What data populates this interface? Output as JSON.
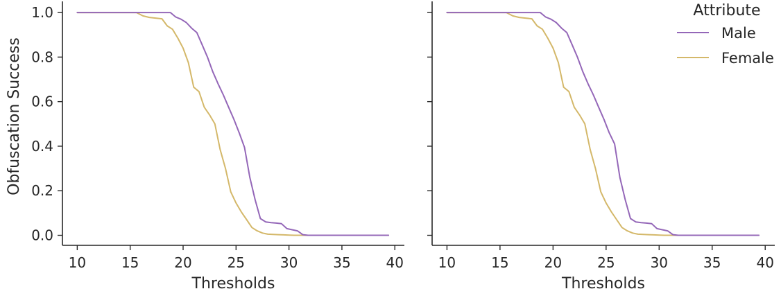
{
  "legend": {
    "title": "Attribute",
    "placement": "top-right"
  },
  "chart_data": [
    {
      "type": "line",
      "xlabel": "Thresholds",
      "ylabel": "Obfuscation Success",
      "xlim": [
        8.6,
        40.9
      ],
      "ylim": [
        -0.045,
        1.05
      ],
      "xticks": [
        10,
        15,
        20,
        25,
        30,
        35,
        40
      ],
      "xtick_labels": [
        "10",
        "15",
        "20",
        "25",
        "30",
        "35",
        "40"
      ],
      "yticks": [
        0.0,
        0.2,
        0.4,
        0.6,
        0.8,
        1.0
      ],
      "ytick_labels": [
        "0.0",
        "0.2",
        "0.4",
        "0.6",
        "0.8",
        "1.0"
      ],
      "grid": false,
      "series": [
        {
          "name": "Male",
          "color": "#9467b8",
          "x": [
            10,
            11,
            12,
            13,
            14,
            15,
            16,
            17,
            18,
            18.8,
            19.3,
            19.8,
            20.3,
            20.8,
            21.3,
            21.8,
            22.3,
            22.8,
            23.3,
            23.8,
            24.3,
            24.8,
            25.3,
            25.8,
            26.3,
            26.8,
            27.3,
            27.8,
            28.3,
            28.8,
            29.3,
            29.8,
            30.3,
            30.8,
            31.3,
            31.8,
            32.3,
            32.8,
            33.3,
            34,
            35,
            36,
            37,
            38,
            39,
            39.4
          ],
          "y": [
            1.0,
            1.0,
            1.0,
            1.0,
            1.0,
            1.0,
            1.0,
            1.0,
            1.0,
            1.0,
            0.98,
            0.97,
            0.955,
            0.93,
            0.91,
            0.855,
            0.8,
            0.735,
            0.68,
            0.63,
            0.575,
            0.52,
            0.46,
            0.395,
            0.26,
            0.16,
            0.075,
            0.06,
            0.057,
            0.055,
            0.052,
            0.03,
            0.025,
            0.02,
            0.003,
            0.0,
            0.0,
            0.0,
            0.0,
            0.0,
            0.0,
            0.0,
            0.0,
            0.0,
            0.0,
            0.0
          ]
        },
        {
          "name": "Female",
          "color": "#d4b86a",
          "x": [
            10,
            11,
            12,
            13,
            14,
            15,
            15.6,
            16.2,
            16.8,
            17.4,
            18,
            18.5,
            19,
            19.5,
            20,
            20.5,
            21,
            21.5,
            22,
            22.5,
            23,
            23.5,
            24,
            24.5,
            25,
            25.5,
            26,
            26.5,
            27,
            27.5,
            28,
            28.5,
            29,
            29.5,
            30,
            30.5,
            31,
            31.5,
            32,
            33,
            34,
            35,
            36,
            37,
            38,
            39.4
          ],
          "y": [
            1.0,
            1.0,
            1.0,
            1.0,
            1.0,
            1.0,
            1.0,
            0.985,
            0.978,
            0.975,
            0.972,
            0.94,
            0.925,
            0.885,
            0.84,
            0.775,
            0.665,
            0.645,
            0.575,
            0.54,
            0.5,
            0.385,
            0.3,
            0.195,
            0.145,
            0.105,
            0.07,
            0.035,
            0.02,
            0.01,
            0.005,
            0.004,
            0.003,
            0.002,
            0.001,
            0.0,
            0.0,
            0.0,
            0.0,
            0.0,
            0.0,
            0.0,
            0.0,
            0.0,
            0.0,
            0.0
          ]
        }
      ]
    },
    {
      "type": "line",
      "xlabel": "Thresholds",
      "ylabel": "",
      "xlim": [
        8.6,
        40.9
      ],
      "ylim": [
        -0.045,
        1.05
      ],
      "xticks": [
        10,
        15,
        20,
        25,
        30,
        35,
        40
      ],
      "xtick_labels": [
        "10",
        "15",
        "20",
        "25",
        "30",
        "35",
        "40"
      ],
      "yticks": [
        0.0,
        0.2,
        0.4,
        0.6,
        0.8,
        1.0
      ],
      "ytick_labels": [],
      "grid": false,
      "series": [
        {
          "name": "Male",
          "color": "#9467b8",
          "x": [
            10,
            11,
            12,
            13,
            14,
            15,
            16,
            17,
            18,
            18.8,
            19.3,
            19.8,
            20.3,
            20.8,
            21.3,
            21.8,
            22.3,
            22.8,
            23.3,
            23.8,
            24.3,
            24.8,
            25.3,
            25.8,
            26.3,
            26.8,
            27.3,
            27.8,
            28.3,
            28.8,
            29.3,
            29.8,
            30.3,
            30.8,
            31.3,
            31.8,
            32.3,
            32.8,
            33.3,
            34,
            35,
            36,
            37,
            38,
            39,
            39.4
          ],
          "y": [
            1.0,
            1.0,
            1.0,
            1.0,
            1.0,
            1.0,
            1.0,
            1.0,
            1.0,
            1.0,
            0.98,
            0.97,
            0.955,
            0.93,
            0.91,
            0.855,
            0.8,
            0.735,
            0.68,
            0.63,
            0.575,
            0.52,
            0.46,
            0.41,
            0.26,
            0.16,
            0.075,
            0.06,
            0.057,
            0.055,
            0.052,
            0.03,
            0.025,
            0.02,
            0.003,
            0.0,
            0.0,
            0.0,
            0.0,
            0.0,
            0.0,
            0.0,
            0.0,
            0.0,
            0.0,
            0.0
          ]
        },
        {
          "name": "Female",
          "color": "#d4b86a",
          "x": [
            10,
            11,
            12,
            13,
            14,
            15,
            15.6,
            16.2,
            16.8,
            17.4,
            18,
            18.5,
            19,
            19.5,
            20,
            20.5,
            21,
            21.5,
            22,
            22.5,
            23,
            23.5,
            24,
            24.5,
            25,
            25.5,
            26,
            26.5,
            27,
            27.5,
            28,
            28.5,
            29,
            29.5,
            30,
            30.5,
            31,
            31.5,
            32,
            33,
            34,
            35,
            36,
            37,
            38,
            39.4
          ],
          "y": [
            1.0,
            1.0,
            1.0,
            1.0,
            1.0,
            1.0,
            1.0,
            0.985,
            0.978,
            0.975,
            0.972,
            0.94,
            0.925,
            0.885,
            0.84,
            0.775,
            0.665,
            0.645,
            0.575,
            0.54,
            0.5,
            0.385,
            0.3,
            0.195,
            0.145,
            0.105,
            0.07,
            0.035,
            0.02,
            0.01,
            0.005,
            0.004,
            0.003,
            0.002,
            0.001,
            0.0,
            0.0,
            0.0,
            0.0,
            0.0,
            0.0,
            0.0,
            0.0,
            0.0,
            0.0,
            0.0
          ]
        }
      ]
    }
  ]
}
